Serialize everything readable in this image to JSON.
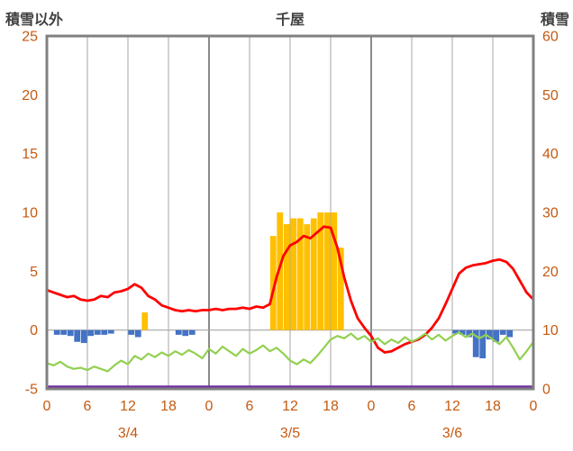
{
  "header": {
    "left_title": "積雪以外",
    "center_title": "千屋",
    "right_title": "積雪"
  },
  "chart_data": {
    "type": "composite",
    "title": "千屋",
    "left_axis": {
      "label": "積雪以外",
      "min": -5,
      "max": 25,
      "ticks": [
        25,
        20,
        15,
        10,
        5,
        0,
        -5
      ]
    },
    "right_axis": {
      "label": "積雪",
      "min": 0,
      "max": 60,
      "ticks": [
        60,
        50,
        40,
        30,
        20,
        10,
        0
      ]
    },
    "x_axis": {
      "hours": 72,
      "tick_interval": 6,
      "tick_labels": [
        "0",
        "6",
        "12",
        "18",
        "0",
        "6",
        "12",
        "18",
        "0",
        "6",
        "12",
        "18",
        "0"
      ],
      "day_labels": [
        {
          "label": "3/4",
          "center_hour": 12
        },
        {
          "label": "3/5",
          "center_hour": 36
        },
        {
          "label": "3/6",
          "center_hour": 60
        }
      ],
      "grid": "vertical lines every 6 hours, darker at day boundaries"
    },
    "colors": {
      "orange_bars": "#FFC000",
      "blue_bars": "#4472C4",
      "red_line": "#FF0000",
      "green_line": "#92D050",
      "purple_line": "#7030A0",
      "grid_light": "#A6A6A6",
      "grid_day": "#595959",
      "border": "#808080",
      "tick_text": "#C55A11",
      "title_text": "#404040"
    },
    "series": [
      {
        "name": "red-line",
        "type": "line",
        "axis": "left",
        "color_key": "red_line",
        "values": [
          3.4,
          3.2,
          3.0,
          2.8,
          2.9,
          2.6,
          2.5,
          2.6,
          2.9,
          2.8,
          3.2,
          3.3,
          3.5,
          3.9,
          3.6,
          2.9,
          2.6,
          2.1,
          1.9,
          1.7,
          1.6,
          1.7,
          1.6,
          1.7,
          1.7,
          1.8,
          1.7,
          1.8,
          1.8,
          1.9,
          1.8,
          2.0,
          1.9,
          2.2,
          4.5,
          6.3,
          7.2,
          7.5,
          8.0,
          7.8,
          8.3,
          8.8,
          8.7,
          7.0,
          4.5,
          2.5,
          1.0,
          0.2,
          -0.5,
          -1.5,
          -1.9,
          -1.8,
          -1.5,
          -1.2,
          -1.0,
          -0.8,
          -0.4,
          0.2,
          1.0,
          2.2,
          3.5,
          4.8,
          5.3,
          5.5,
          5.6,
          5.7,
          5.9,
          6.0,
          5.8,
          5.2,
          4.2,
          3.2,
          2.6
        ]
      },
      {
        "name": "green-line",
        "type": "line",
        "axis": "left",
        "color_key": "green_line",
        "values": [
          -2.8,
          -3.0,
          -2.7,
          -3.1,
          -3.3,
          -3.2,
          -3.4,
          -3.1,
          -3.3,
          -3.5,
          -3.0,
          -2.6,
          -2.9,
          -2.2,
          -2.5,
          -2.0,
          -2.3,
          -1.9,
          -2.2,
          -1.8,
          -2.1,
          -1.7,
          -2.0,
          -2.4,
          -1.6,
          -2.0,
          -1.4,
          -1.8,
          -2.2,
          -1.6,
          -2.0,
          -1.7,
          -1.3,
          -1.8,
          -1.5,
          -2.0,
          -2.6,
          -2.9,
          -2.5,
          -2.8,
          -2.2,
          -1.5,
          -0.8,
          -0.5,
          -0.7,
          -0.3,
          -0.8,
          -0.5,
          -1.0,
          -0.7,
          -1.2,
          -0.8,
          -1.1,
          -0.6,
          -1.0,
          -0.7,
          -0.3,
          -0.8,
          -0.4,
          -0.9,
          -0.5,
          -0.2,
          -0.6,
          -0.3,
          -0.7,
          -0.4,
          -0.8,
          -1.2,
          -0.6,
          -1.5,
          -2.5,
          -1.8,
          -1.0
        ]
      },
      {
        "name": "orange-bars",
        "type": "bar",
        "axis": "left",
        "color_key": "orange_bars",
        "points": [
          {
            "h": 14,
            "v": 1.5
          },
          {
            "h": 33,
            "v": 8
          },
          {
            "h": 34,
            "v": 10
          },
          {
            "h": 35,
            "v": 9
          },
          {
            "h": 36,
            "v": 9.5
          },
          {
            "h": 37,
            "v": 9.5
          },
          {
            "h": 38,
            "v": 9
          },
          {
            "h": 39,
            "v": 9.5
          },
          {
            "h": 40,
            "v": 10
          },
          {
            "h": 41,
            "v": 10
          },
          {
            "h": 42,
            "v": 10
          },
          {
            "h": 43,
            "v": 7
          }
        ]
      },
      {
        "name": "blue-bars",
        "type": "bar",
        "axis": "left",
        "color_key": "blue_bars",
        "points": [
          {
            "h": 1,
            "v": -0.4
          },
          {
            "h": 2,
            "v": -0.4
          },
          {
            "h": 3,
            "v": -0.5
          },
          {
            "h": 4,
            "v": -1.0
          },
          {
            "h": 5,
            "v": -1.1
          },
          {
            "h": 6,
            "v": -0.5
          },
          {
            "h": 7,
            "v": -0.4
          },
          {
            "h": 8,
            "v": -0.4
          },
          {
            "h": 9,
            "v": -0.3
          },
          {
            "h": 12,
            "v": -0.4
          },
          {
            "h": 13,
            "v": -0.6
          },
          {
            "h": 19,
            "v": -0.4
          },
          {
            "h": 20,
            "v": -0.5
          },
          {
            "h": 21,
            "v": -0.4
          },
          {
            "h": 60,
            "v": -0.3
          },
          {
            "h": 61,
            "v": -0.4
          },
          {
            "h": 62,
            "v": -0.6
          },
          {
            "h": 63,
            "v": -2.3
          },
          {
            "h": 64,
            "v": -2.4
          },
          {
            "h": 65,
            "v": -0.8
          },
          {
            "h": 66,
            "v": -1.0
          },
          {
            "h": 67,
            "v": -0.4
          },
          {
            "h": 68,
            "v": -0.6
          }
        ]
      },
      {
        "name": "purple-line",
        "type": "constant-line",
        "axis": "right",
        "color_key": "purple_line",
        "value": 0
      }
    ]
  }
}
